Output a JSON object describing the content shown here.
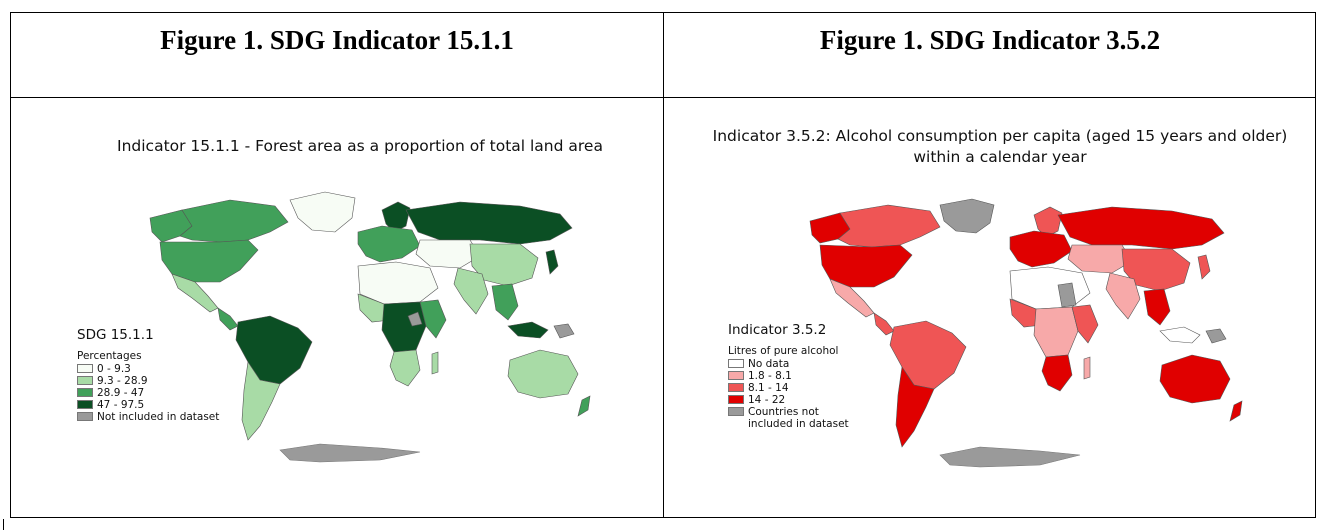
{
  "left": {
    "header": "Figure 1. SDG Indicator 15.1.1",
    "map_title": "Indicator 15.1.1 - Forest area as a proportion of total land area",
    "legend": {
      "title": "SDG 15.1.1",
      "subtitle": "Percentages",
      "items": [
        {
          "label": "0 - 9.3",
          "color": "#f7fcf5"
        },
        {
          "label": "9.3 - 28.9",
          "color": "#a8dba6"
        },
        {
          "label": "28.9 - 47",
          "color": "#41a05a"
        },
        {
          "label": "47 - 97.5",
          "color": "#0b4f24"
        },
        {
          "label": "Not included in dataset",
          "color": "#9a9a9a"
        }
      ]
    }
  },
  "right": {
    "header": "Figure 1. SDG Indicator 3.5.2",
    "map_title_line1": "Indicator 3.5.2: Alcohol consumption per capita (aged 15 years and older)",
    "map_title_line2": "within a calendar year",
    "legend": {
      "title": "Indicator 3.5.2",
      "subtitle": "Litres of pure alcohol",
      "items": [
        {
          "label": "No data",
          "color": "#ffffff"
        },
        {
          "label": "1.8 - 8.1",
          "color": "#f7a9a9"
        },
        {
          "label": "8.1 - 14",
          "color": "#ef5555"
        },
        {
          "label": "14 - 22",
          "color": "#e00000"
        },
        {
          "label": "Countries not",
          "label2": "included in dataset",
          "color": "#9a9a9a"
        }
      ]
    }
  }
}
